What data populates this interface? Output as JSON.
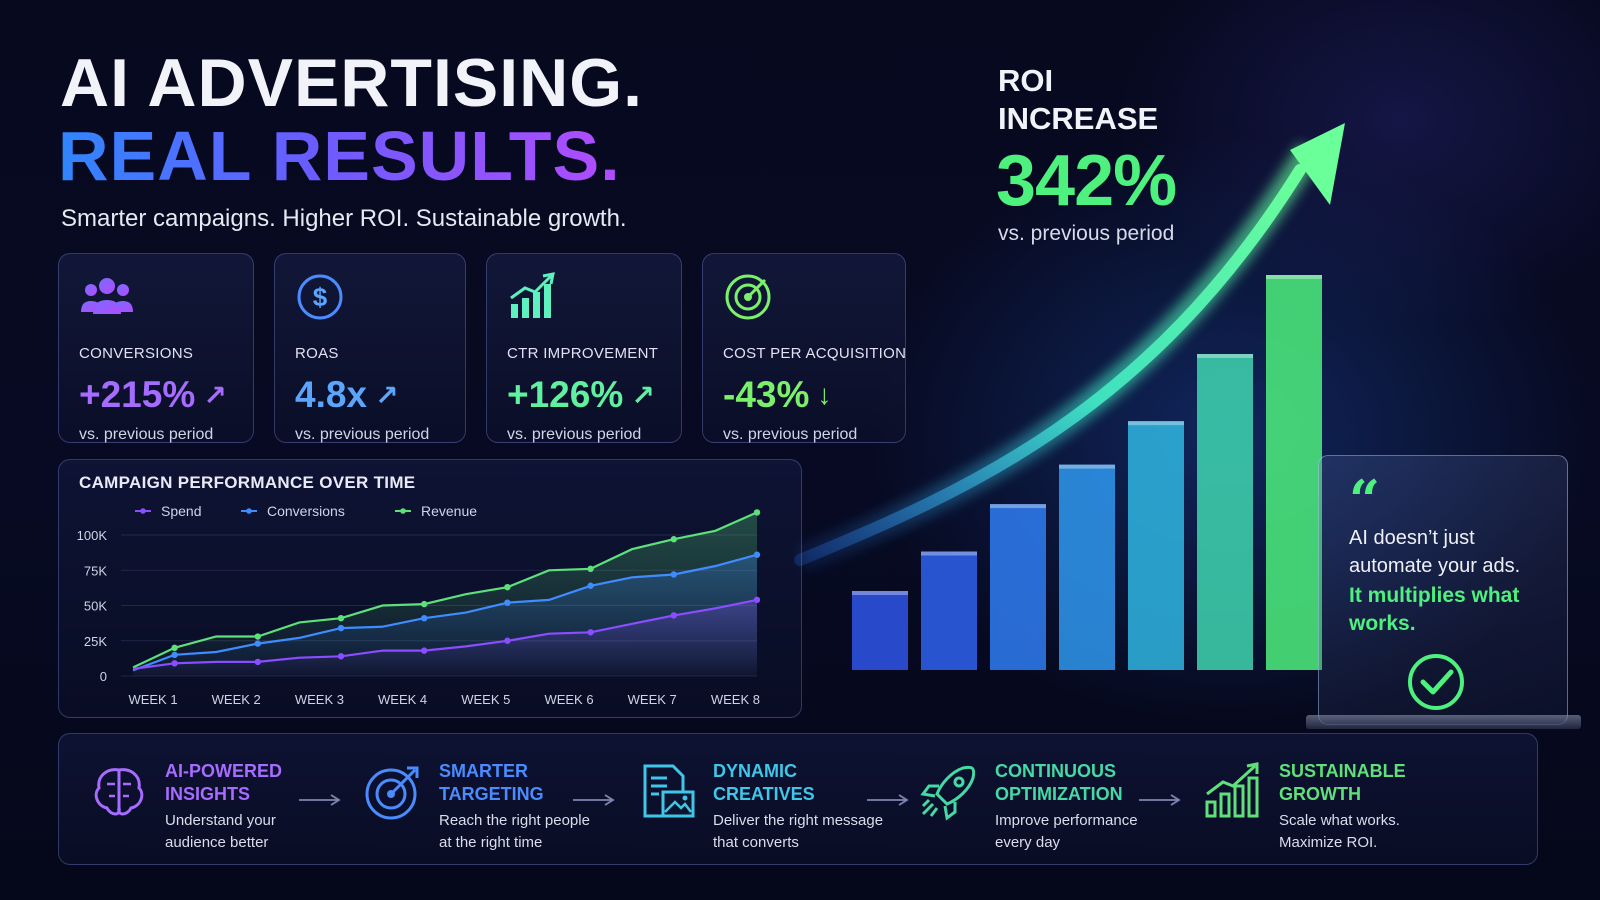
{
  "header": {
    "line1": "AI ADVERTISING.",
    "line2": "REAL RESULTS.",
    "tagline": "Smarter campaigns. Higher ROI. Sustainable growth."
  },
  "stats": [
    {
      "icon": "users-icon",
      "label": "CONVERSIONS",
      "value": "+215%",
      "trend": "up",
      "sub": "vs. previous period",
      "color": "#a66bff"
    },
    {
      "icon": "dollar-icon",
      "label": "ROAS",
      "value": "4.8x",
      "trend": "up",
      "sub": "vs. previous period",
      "color": "#5aa6ff"
    },
    {
      "icon": "bar-chart-icon",
      "label": "CTR IMPROVEMENT",
      "value": "+126%",
      "trend": "up",
      "sub": "vs. previous period",
      "color": "#5ff0a0"
    },
    {
      "icon": "target-icon",
      "label": "COST PER ACQUISITION",
      "value": "-43%",
      "trend": "down",
      "sub": "vs. previous period",
      "color": "#7bf06a"
    }
  ],
  "roi": {
    "title_line1": "ROI",
    "title_line2": "INCREASE",
    "value": "342%",
    "sub": "vs. previous period",
    "bar_levels": [
      0.2,
      0.3,
      0.42,
      0.52,
      0.63,
      0.8,
      1.0
    ]
  },
  "quote": {
    "mark": "“",
    "line1": "AI doesn’t just automate your ads.",
    "line2": "It multiplies what works."
  },
  "chart_data": {
    "type": "line",
    "title": "CAMPAIGN PERFORMANCE OVER TIME",
    "categories": [
      "WEEK 1",
      "WEEK 2",
      "WEEK 3",
      "WEEK 4",
      "WEEK 5",
      "WEEK 6",
      "WEEK 7",
      "WEEK 8"
    ],
    "y_ticks": [
      "0",
      "25K",
      "50K",
      "75K",
      "100K"
    ],
    "ylim": [
      0,
      100000
    ],
    "legend_position": "top-left",
    "x": [
      0,
      0.5,
      1,
      1.5,
      2,
      2.5,
      3,
      3.5,
      4,
      4.5,
      5,
      5.5,
      6,
      6.5,
      7,
      7.5
    ],
    "series": [
      {
        "name": "Spend",
        "color": "#8a4dff",
        "values": [
          5000,
          9000,
          10000,
          10000,
          13000,
          14000,
          18000,
          18000,
          21000,
          25000,
          30000,
          31000,
          37000,
          43000,
          48000,
          54000
        ]
      },
      {
        "name": "Conversions",
        "color": "#3f8cff",
        "values": [
          4000,
          15000,
          17000,
          23000,
          27000,
          34000,
          35000,
          41000,
          45000,
          52000,
          54000,
          64000,
          70000,
          72000,
          78000,
          86000
        ]
      },
      {
        "name": "Revenue",
        "color": "#5de07a",
        "values": [
          6000,
          20000,
          28000,
          28000,
          38000,
          41000,
          50000,
          51000,
          58000,
          63000,
          75000,
          76000,
          90000,
          97000,
          103000,
          116000
        ]
      }
    ]
  },
  "steps": [
    {
      "icon": "brain-icon",
      "title1": "AI-POWERED",
      "title2": "INSIGHTS",
      "desc1": "Understand your",
      "desc2": "audience better",
      "color": "#a66bff"
    },
    {
      "icon": "target-arrow-icon",
      "title1": "SMARTER",
      "title2": "TARGETING",
      "desc1": "Reach the right people",
      "desc2": "at the right time",
      "color": "#4a8cff"
    },
    {
      "icon": "document-image-icon",
      "title1": "DYNAMIC",
      "title2": "CREATIVES",
      "desc1": "Deliver the right message",
      "desc2": "that converts",
      "color": "#3fc6e8"
    },
    {
      "icon": "rocket-icon",
      "title1": "CONTINUOUS",
      "title2": "OPTIMIZATION",
      "desc1": "Improve performance",
      "desc2": "every day",
      "color": "#45d9a6"
    },
    {
      "icon": "growth-chart-icon",
      "title1": "SUSTAINABLE",
      "title2": "GROWTH",
      "desc1": "Scale what works.",
      "desc2": "Maximize ROI.",
      "color": "#5fe07a"
    }
  ]
}
